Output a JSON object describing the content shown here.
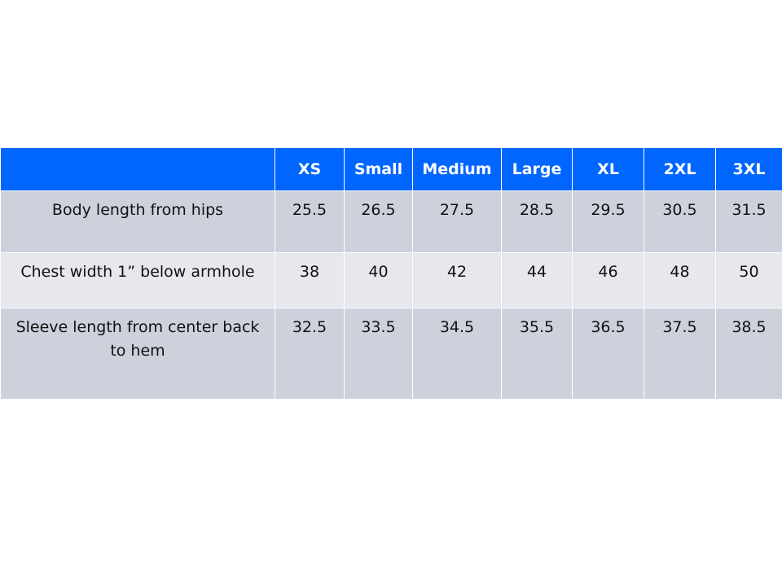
{
  "table": {
    "headers": [
      "",
      "XS",
      "Small",
      "Medium",
      "Large",
      "XL",
      "2XL",
      "3XL"
    ],
    "rows": [
      {
        "label": "Body length from hips",
        "values": [
          "25.5",
          "26.5",
          "27.5",
          "28.5",
          "29.5",
          "30.5",
          "31.5"
        ]
      },
      {
        "label": "Chest width 1” below armhole",
        "values": [
          "38",
          "40",
          "42",
          "44",
          "46",
          "48",
          "50"
        ]
      },
      {
        "label": "Sleeve length from center back to hem",
        "values": [
          "32.5",
          "33.5",
          "34.5",
          "35.5",
          "36.5",
          "37.5",
          "38.5"
        ]
      }
    ]
  },
  "colors": {
    "header": "#0066ff",
    "row_dark": "#cdd1dc",
    "row_light": "#e7e8ee"
  }
}
